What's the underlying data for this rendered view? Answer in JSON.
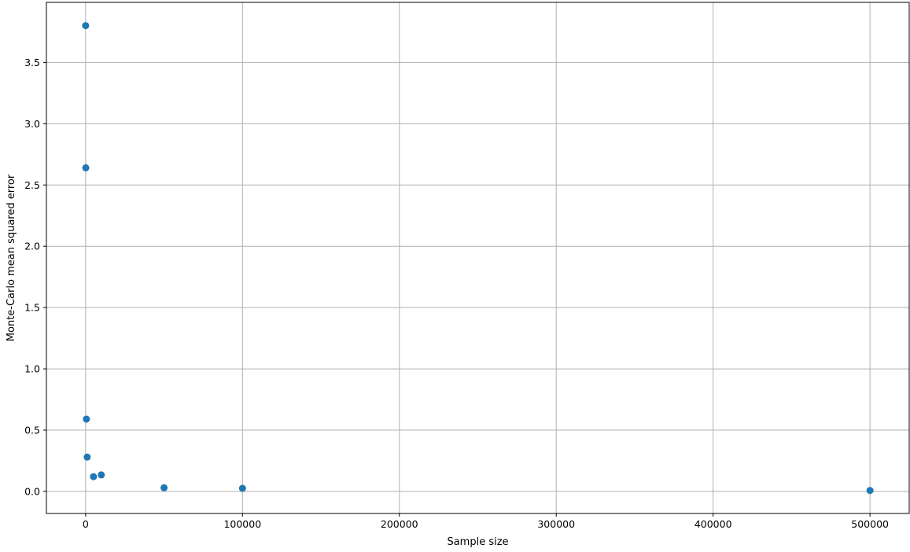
{
  "chart_data": {
    "type": "scatter",
    "xlabel": "Sample size",
    "ylabel": "Monte-Carlo mean squared error",
    "xlim": [
      -25000,
      525000
    ],
    "ylim": [
      -0.18,
      3.99
    ],
    "x_ticks": [
      0,
      100000,
      200000,
      300000,
      400000,
      500000
    ],
    "x_tick_labels": [
      "0",
      "100000",
      "200000",
      "300000",
      "400000",
      "500000"
    ],
    "y_ticks": [
      0.0,
      0.5,
      1.0,
      1.5,
      2.0,
      2.5,
      3.0,
      3.5
    ],
    "y_tick_labels": [
      "0.0",
      "0.5",
      "1.0",
      "1.5",
      "2.0",
      "2.5",
      "3.0",
      "3.5"
    ],
    "grid": true,
    "marker_color": "#1f77b4",
    "series": [
      {
        "x": [
          10,
          100,
          500,
          1000,
          5000,
          10000,
          50000,
          100000,
          500000
        ],
        "y": [
          3.8,
          2.64,
          0.59,
          0.28,
          0.12,
          0.135,
          0.03,
          0.025,
          0.008
        ]
      }
    ]
  }
}
